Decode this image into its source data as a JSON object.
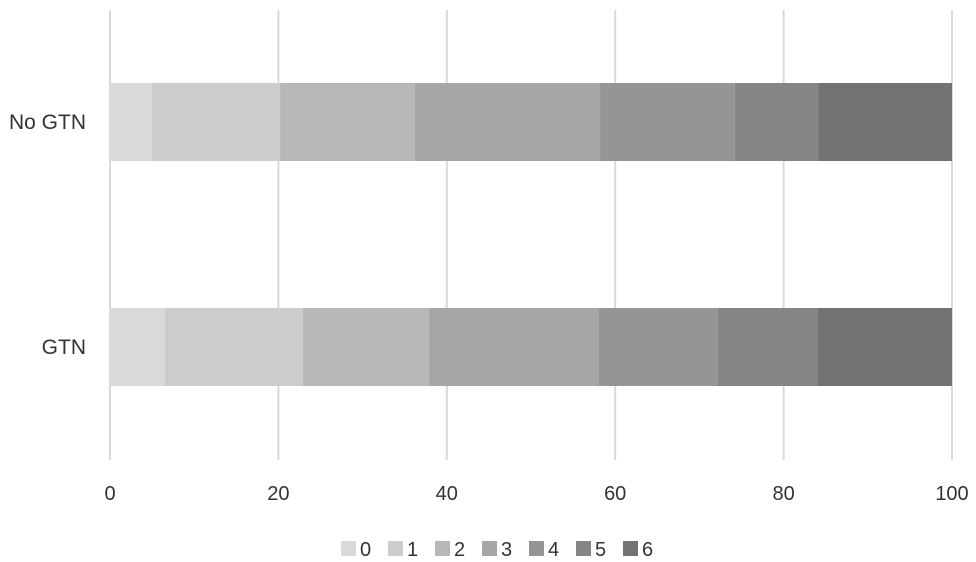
{
  "chart_data": {
    "type": "bar",
    "orientation": "horizontal",
    "stacked": true,
    "categories": [
      "No GTN",
      "GTN"
    ],
    "series": [
      {
        "name": "0",
        "color": "#d9d9d9",
        "values": [
          5,
          6.5
        ]
      },
      {
        "name": "1",
        "color": "#cccccc",
        "values": [
          15.2,
          16.4
        ]
      },
      {
        "name": "2",
        "color": "#b8b8b8",
        "values": [
          16,
          15
        ]
      },
      {
        "name": "3",
        "color": "#a6a6a6",
        "values": [
          22,
          20.1
        ]
      },
      {
        "name": "4",
        "color": "#959595",
        "values": [
          16,
          14.2
        ]
      },
      {
        "name": "5",
        "color": "#858585",
        "values": [
          9.9,
          11.8
        ]
      },
      {
        "name": "6",
        "color": "#737373",
        "values": [
          15.9,
          16
        ]
      }
    ],
    "xlim": [
      0,
      100
    ],
    "x_ticks": [
      "0",
      "20",
      "40",
      "60",
      "80",
      "100"
    ],
    "grid": "vertical",
    "legend_position": "bottom",
    "title": "",
    "xlabel": "",
    "ylabel": ""
  }
}
